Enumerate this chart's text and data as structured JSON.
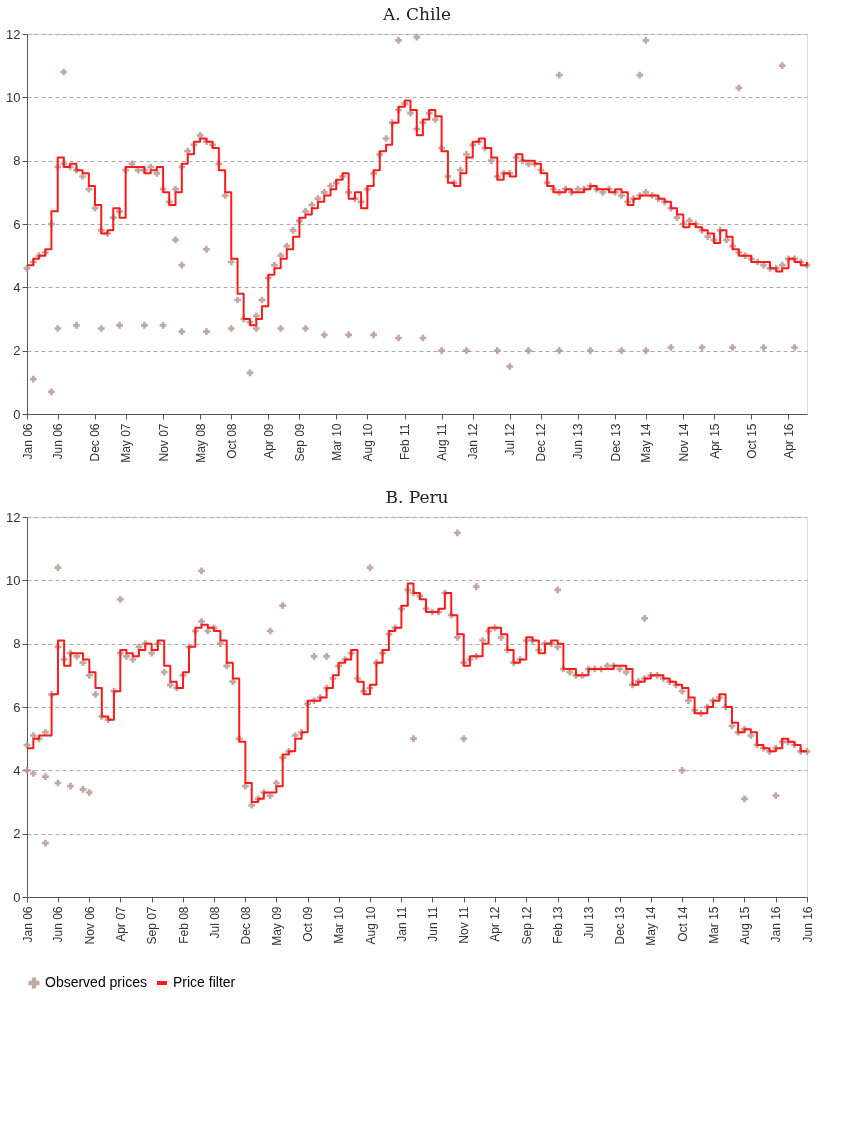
{
  "chart_data": [
    {
      "type": "line",
      "title": "A. Chile",
      "ylim": [
        0,
        12
      ],
      "yticks": [
        0,
        2,
        4,
        6,
        8,
        10,
        12
      ],
      "xlim": [
        "2006-01",
        "2016-07"
      ],
      "grid": "y",
      "xticks": [
        {
          "value": "2006-01",
          "label": "Jan 06"
        },
        {
          "value": "2006-06",
          "label": "Jun 06"
        },
        {
          "value": "2006-12",
          "label": "Dec 06"
        },
        {
          "value": "2007-05",
          "label": "May 07"
        },
        {
          "value": "2007-11",
          "label": "Nov 07"
        },
        {
          "value": "2008-05",
          "label": "May 08"
        },
        {
          "value": "2008-10",
          "label": "Oct 08"
        },
        {
          "value": "2009-04",
          "label": "Apr 09"
        },
        {
          "value": "2009-09",
          "label": "Sep 09"
        },
        {
          "value": "2010-03",
          "label": "Mar 10"
        },
        {
          "value": "2010-08",
          "label": "Aug 10"
        },
        {
          "value": "2011-02",
          "label": "Feb 11"
        },
        {
          "value": "2011-08",
          "label": "Aug 11"
        },
        {
          "value": "2012-01",
          "label": "Jan 12"
        },
        {
          "value": "2012-07",
          "label": "Jul 12"
        },
        {
          "value": "2012-12",
          "label": "Dec 12"
        },
        {
          "value": "2013-06",
          "label": "Jun 13"
        },
        {
          "value": "2013-12",
          "label": "Dec 13"
        },
        {
          "value": "2014-05",
          "label": "May 14"
        },
        {
          "value": "2014-11",
          "label": "Nov 14"
        },
        {
          "value": "2015-04",
          "label": "Apr 15"
        },
        {
          "value": "2015-10",
          "label": "Oct 15"
        },
        {
          "value": "2016-04",
          "label": "Apr 16"
        }
      ],
      "x": [
        "2006-01",
        "2006-02",
        "2006-03",
        "2006-04",
        "2006-05",
        "2006-06",
        "2006-07",
        "2006-08",
        "2006-09",
        "2006-10",
        "2006-11",
        "2006-12",
        "2007-01",
        "2007-02",
        "2007-03",
        "2007-04",
        "2007-05",
        "2007-06",
        "2007-07",
        "2007-08",
        "2007-09",
        "2007-10",
        "2007-11",
        "2007-12",
        "2008-01",
        "2008-02",
        "2008-03",
        "2008-04",
        "2008-05",
        "2008-06",
        "2008-07",
        "2008-08",
        "2008-09",
        "2008-10",
        "2008-11",
        "2008-12",
        "2009-01",
        "2009-02",
        "2009-03",
        "2009-04",
        "2009-05",
        "2009-06",
        "2009-07",
        "2009-08",
        "2009-09",
        "2009-10",
        "2009-11",
        "2009-12",
        "2010-01",
        "2010-02",
        "2010-03",
        "2010-04",
        "2010-05",
        "2010-06",
        "2010-07",
        "2010-08",
        "2010-09",
        "2010-10",
        "2010-11",
        "2010-12",
        "2011-01",
        "2011-02",
        "2011-03",
        "2011-04",
        "2011-05",
        "2011-06",
        "2011-07",
        "2011-08",
        "2011-09",
        "2011-10",
        "2011-11",
        "2011-12",
        "2012-01",
        "2012-02",
        "2012-03",
        "2012-04",
        "2012-05",
        "2012-06",
        "2012-07",
        "2012-08",
        "2012-09",
        "2012-10",
        "2012-11",
        "2012-12",
        "2013-01",
        "2013-02",
        "2013-03",
        "2013-04",
        "2013-05",
        "2013-06",
        "2013-07",
        "2013-08",
        "2013-09",
        "2013-10",
        "2013-11",
        "2013-12",
        "2014-01",
        "2014-02",
        "2014-03",
        "2014-04",
        "2014-05",
        "2014-06",
        "2014-07",
        "2014-08",
        "2014-09",
        "2014-10",
        "2014-11",
        "2014-12",
        "2015-01",
        "2015-02",
        "2015-03",
        "2015-04",
        "2015-05",
        "2015-06",
        "2015-07",
        "2015-08",
        "2015-09",
        "2015-10",
        "2015-11",
        "2015-12",
        "2016-01",
        "2016-02",
        "2016-03",
        "2016-04",
        "2016-05",
        "2016-06",
        "2016-07"
      ],
      "series": [
        {
          "type": "scatter",
          "marker": "cross",
          "color": "#b89890",
          "values": [
            4.6,
            4.8,
            5.0,
            5.1,
            6.0,
            7.8,
            7.9,
            7.8,
            7.7,
            7.5,
            7.1,
            6.5,
            5.8,
            5.7,
            6.2,
            6.4,
            7.7,
            7.9,
            7.7,
            7.7,
            7.8,
            7.6,
            7.1,
            6.7,
            7.1,
            7.8,
            8.3,
            8.5,
            8.8,
            8.6,
            8.5,
            7.9,
            6.9,
            4.8,
            3.6,
            3.0,
            2.9,
            3.1,
            3.6,
            4.3,
            4.7,
            5.0,
            5.3,
            5.8,
            6.1,
            6.4,
            6.6,
            6.8,
            7.0,
            7.2,
            7.3,
            7.5,
            7.0,
            6.8,
            6.7,
            7.1,
            7.6,
            8.2,
            8.7,
            9.2,
            9.6,
            9.8,
            9.5,
            9.0,
            9.2,
            9.5,
            9.3,
            8.4,
            7.5,
            7.3,
            7.7,
            8.2,
            8.5,
            8.6,
            8.4,
            8.0,
            7.5,
            7.6,
            7.6,
            8.1,
            8.0,
            7.9,
            7.9,
            7.7,
            7.3,
            7.1,
            7.0,
            7.1,
            7.0,
            7.1,
            7.1,
            7.2,
            7.1,
            7.0,
            7.1,
            7.0,
            6.9,
            6.7,
            6.8,
            6.9,
            7.0,
            6.9,
            6.8,
            6.7,
            6.5,
            6.2,
            6.0,
            6.1,
            6.0,
            5.8,
            5.6,
            5.5,
            5.8,
            5.5,
            5.3,
            5.1,
            5.0,
            4.9,
            4.8,
            4.7,
            4.6,
            4.6,
            4.7,
            4.9,
            4.9,
            4.8,
            4.7
          ]
        },
        {
          "type": "scatter",
          "marker": "cross",
          "color": "#b89890",
          "x": [
            "2006-06",
            "2006-09",
            "2007-01",
            "2007-04",
            "2007-08",
            "2007-11",
            "2008-02",
            "2008-06",
            "2008-10",
            "2009-02",
            "2009-06",
            "2009-10",
            "2010-01",
            "2010-05",
            "2010-09",
            "2011-01",
            "2011-05",
            "2011-08",
            "2011-12",
            "2012-05",
            "2012-10",
            "2013-03",
            "2013-08",
            "2014-01",
            "2014-05",
            "2014-09",
            "2015-02",
            "2015-07",
            "2015-12",
            "2016-05",
            "2006-02",
            "2006-07",
            "2006-05",
            "2008-01",
            "2008-02",
            "2008-06",
            "2011-01",
            "2011-04",
            "2013-03",
            "2014-05",
            "2014-04",
            "2015-08",
            "2016-03",
            "2012-07",
            "2009-01"
          ],
          "values": [
            2.7,
            2.8,
            2.7,
            2.8,
            2.8,
            2.8,
            2.6,
            2.6,
            2.7,
            2.7,
            2.7,
            2.7,
            2.5,
            2.5,
            2.5,
            2.4,
            2.4,
            2.0,
            2.0,
            2.0,
            2.0,
            2.0,
            2.0,
            2.0,
            2.0,
            2.1,
            2.1,
            2.1,
            2.1,
            2.1,
            1.1,
            10.8,
            0.7,
            5.5,
            4.7,
            5.2,
            11.8,
            11.9,
            10.7,
            11.8,
            10.7,
            10.3,
            11.0,
            1.5,
            1.3
          ]
        },
        {
          "type": "step",
          "line_style": "solid",
          "color": "#ff1a1a",
          "values": [
            4.7,
            4.9,
            5.0,
            5.2,
            6.4,
            8.1,
            7.8,
            7.9,
            7.7,
            7.6,
            7.2,
            6.6,
            5.7,
            5.8,
            6.5,
            6.2,
            7.8,
            7.8,
            7.8,
            7.6,
            7.7,
            7.8,
            7.0,
            6.6,
            7.0,
            7.9,
            8.2,
            8.6,
            8.7,
            8.6,
            8.4,
            7.7,
            7.0,
            4.9,
            3.8,
            3.0,
            2.8,
            3.0,
            3.4,
            4.4,
            4.6,
            4.9,
            5.2,
            5.6,
            6.2,
            6.3,
            6.5,
            6.7,
            6.9,
            7.1,
            7.4,
            7.6,
            6.8,
            7.0,
            6.5,
            7.2,
            7.7,
            8.3,
            8.5,
            9.2,
            9.7,
            9.9,
            9.6,
            8.8,
            9.3,
            9.6,
            9.4,
            8.3,
            7.3,
            7.2,
            7.6,
            8.1,
            8.6,
            8.7,
            8.4,
            8.1,
            7.4,
            7.6,
            7.5,
            8.2,
            8.0,
            8.0,
            7.9,
            7.6,
            7.2,
            7.0,
            7.0,
            7.1,
            7.0,
            7.0,
            7.1,
            7.2,
            7.1,
            7.1,
            7.0,
            7.1,
            7.0,
            6.6,
            6.8,
            6.9,
            6.9,
            6.9,
            6.8,
            6.7,
            6.5,
            6.3,
            5.9,
            6.0,
            5.9,
            5.8,
            5.7,
            5.4,
            5.8,
            5.6,
            5.2,
            5.0,
            5.0,
            4.8,
            4.8,
            4.8,
            4.6,
            4.5,
            4.6,
            4.9,
            4.8,
            4.7,
            4.8
          ]
        }
      ]
    },
    {
      "type": "line",
      "title": "B. Peru",
      "ylim": [
        0,
        12
      ],
      "yticks": [
        0,
        2,
        4,
        6,
        8,
        10,
        12
      ],
      "xlim": [
        "2006-01",
        "2016-06"
      ],
      "grid": "y",
      "legend": "bottom",
      "xticks": [
        {
          "value": "2006-01",
          "label": "Jan 06"
        },
        {
          "value": "2006-06",
          "label": "Jun 06"
        },
        {
          "value": "2006-11",
          "label": "Nov 06"
        },
        {
          "value": "2007-04",
          "label": "Apr 07"
        },
        {
          "value": "2007-09",
          "label": "Sep 07"
        },
        {
          "value": "2008-02",
          "label": "Feb 08"
        },
        {
          "value": "2008-07",
          "label": "Jul 08"
        },
        {
          "value": "2008-12",
          "label": "Dec 08"
        },
        {
          "value": "2009-05",
          "label": "May 09"
        },
        {
          "value": "2009-10",
          "label": "Oct 09"
        },
        {
          "value": "2010-03",
          "label": "Mar 10"
        },
        {
          "value": "2010-08",
          "label": "Aug 10"
        },
        {
          "value": "2011-01",
          "label": "Jan 11"
        },
        {
          "value": "2011-06",
          "label": "Jun 11"
        },
        {
          "value": "2011-11",
          "label": "Nov 11"
        },
        {
          "value": "2012-04",
          "label": "Apr 12"
        },
        {
          "value": "2012-09",
          "label": "Sep 12"
        },
        {
          "value": "2013-02",
          "label": "Feb 13"
        },
        {
          "value": "2013-07",
          "label": "Jul 13"
        },
        {
          "value": "2013-12",
          "label": "Dec 13"
        },
        {
          "value": "2014-05",
          "label": "May 14"
        },
        {
          "value": "2014-10",
          "label": "Oct 14"
        },
        {
          "value": "2015-03",
          "label": "Mar 15"
        },
        {
          "value": "2015-08",
          "label": "Aug 15"
        },
        {
          "value": "2016-01",
          "label": "Jan 16"
        },
        {
          "value": "2016-06",
          "label": "Jun 16"
        }
      ],
      "x": [
        "2006-01",
        "2006-02",
        "2006-03",
        "2006-04",
        "2006-05",
        "2006-06",
        "2006-07",
        "2006-08",
        "2006-09",
        "2006-10",
        "2006-11",
        "2006-12",
        "2007-01",
        "2007-02",
        "2007-03",
        "2007-04",
        "2007-05",
        "2007-06",
        "2007-07",
        "2007-08",
        "2007-09",
        "2007-10",
        "2007-11",
        "2007-12",
        "2008-01",
        "2008-02",
        "2008-03",
        "2008-04",
        "2008-05",
        "2008-06",
        "2008-07",
        "2008-08",
        "2008-09",
        "2008-10",
        "2008-11",
        "2008-12",
        "2009-01",
        "2009-02",
        "2009-03",
        "2009-04",
        "2009-05",
        "2009-06",
        "2009-07",
        "2009-08",
        "2009-09",
        "2009-10",
        "2009-11",
        "2009-12",
        "2010-01",
        "2010-02",
        "2010-03",
        "2010-04",
        "2010-05",
        "2010-06",
        "2010-07",
        "2010-08",
        "2010-09",
        "2010-10",
        "2010-11",
        "2010-12",
        "2011-01",
        "2011-02",
        "2011-03",
        "2011-04",
        "2011-05",
        "2011-06",
        "2011-07",
        "2011-08",
        "2011-09",
        "2011-10",
        "2011-11",
        "2011-12",
        "2012-01",
        "2012-02",
        "2012-03",
        "2012-04",
        "2012-05",
        "2012-06",
        "2012-07",
        "2012-08",
        "2012-09",
        "2012-10",
        "2012-11",
        "2012-12",
        "2013-01",
        "2013-02",
        "2013-03",
        "2013-04",
        "2013-05",
        "2013-06",
        "2013-07",
        "2013-08",
        "2013-09",
        "2013-10",
        "2013-11",
        "2013-12",
        "2014-01",
        "2014-02",
        "2014-03",
        "2014-04",
        "2014-05",
        "2014-06",
        "2014-07",
        "2014-08",
        "2014-09",
        "2014-10",
        "2014-11",
        "2014-12",
        "2015-01",
        "2015-02",
        "2015-03",
        "2015-04",
        "2015-05",
        "2015-06",
        "2015-07",
        "2015-08",
        "2015-09",
        "2015-10",
        "2015-11",
        "2015-12",
        "2016-01",
        "2016-02",
        "2016-03",
        "2016-04",
        "2016-05",
        "2016-06"
      ],
      "series": [
        {
          "name": "Observed prices",
          "type": "scatter",
          "marker": "cross",
          "color": "#b89890",
          "values": [
            4.8,
            5.1,
            5.0,
            5.2,
            6.4,
            7.9,
            7.5,
            7.7,
            7.6,
            7.4,
            7.0,
            6.4,
            5.7,
            5.6,
            6.5,
            7.7,
            7.6,
            7.5,
            7.9,
            8.0,
            7.7,
            8.0,
            7.1,
            6.7,
            6.6,
            7.0,
            7.9,
            8.4,
            8.7,
            8.4,
            8.5,
            8.0,
            7.3,
            6.8,
            5.0,
            3.5,
            2.9,
            3.1,
            3.3,
            3.2,
            3.6,
            4.4,
            4.6,
            5.1,
            5.2,
            6.1,
            6.2,
            6.3,
            6.6,
            6.9,
            7.3,
            7.5,
            7.7,
            6.9,
            6.5,
            6.6,
            7.4,
            7.7,
            8.3,
            8.5,
            9.1,
            9.7,
            9.6,
            9.5,
            9.1,
            9.0,
            9.0,
            9.6,
            8.9,
            8.2,
            7.4,
            7.5,
            7.6,
            8.1,
            8.4,
            8.5,
            8.2,
            7.8,
            7.4,
            7.5,
            8.1,
            8.1,
            7.8,
            8.0,
            8.0,
            7.9,
            7.2,
            7.1,
            7.0,
            7.0,
            7.2,
            7.2,
            7.2,
            7.3,
            7.3,
            7.2,
            7.1,
            6.7,
            6.8,
            6.9,
            7.0,
            7.0,
            6.9,
            6.8,
            6.7,
            6.5,
            6.2,
            5.9,
            5.8,
            6.0,
            6.2,
            6.3,
            6.0,
            5.4,
            5.2,
            5.3,
            5.1,
            4.8,
            4.7,
            4.6,
            4.7,
            4.9,
            4.9,
            4.8,
            4.6,
            4.6
          ]
        },
        {
          "type": "scatter",
          "marker": "cross",
          "color": "#b89890",
          "x": [
            "2006-01",
            "2006-02",
            "2006-04",
            "2006-06",
            "2006-08",
            "2006-10",
            "2006-11",
            "2006-04",
            "2006-06",
            "2007-04",
            "2008-05",
            "2009-06",
            "2009-04",
            "2010-08",
            "2011-10",
            "2012-01",
            "2013-02",
            "2014-04",
            "2015-08",
            "2016-01",
            "2011-03",
            "2011-11",
            "2014-10",
            "2009-11",
            "2010-01"
          ],
          "values": [
            4.0,
            3.9,
            3.8,
            3.6,
            3.5,
            3.4,
            3.3,
            1.7,
            10.4,
            9.4,
            10.3,
            9.2,
            8.4,
            10.4,
            11.5,
            9.8,
            9.7,
            8.8,
            3.1,
            3.2,
            5.0,
            5.0,
            4.0,
            7.6,
            7.6
          ]
        },
        {
          "name": "Price filter",
          "type": "step",
          "line_style": "solid",
          "color": "#ff1a1a",
          "values": [
            4.7,
            5.0,
            5.1,
            5.1,
            6.4,
            8.1,
            7.3,
            7.7,
            7.7,
            7.5,
            7.1,
            6.6,
            5.7,
            5.6,
            6.5,
            7.8,
            7.7,
            7.6,
            7.8,
            8.0,
            7.8,
            8.1,
            7.3,
            6.8,
            6.6,
            7.1,
            7.9,
            8.5,
            8.6,
            8.5,
            8.4,
            8.1,
            7.4,
            6.9,
            4.9,
            3.6,
            3.0,
            3.1,
            3.3,
            3.3,
            3.5,
            4.5,
            4.6,
            5.0,
            5.2,
            6.2,
            6.2,
            6.3,
            6.6,
            7.0,
            7.4,
            7.5,
            7.8,
            6.8,
            6.4,
            6.7,
            7.4,
            7.8,
            8.4,
            8.5,
            9.2,
            9.9,
            9.6,
            9.4,
            9.0,
            9.0,
            9.1,
            9.6,
            8.9,
            8.3,
            7.3,
            7.6,
            7.6,
            8.0,
            8.5,
            8.5,
            8.3,
            7.8,
            7.4,
            7.5,
            8.2,
            8.1,
            7.7,
            8.0,
            8.1,
            8.0,
            7.2,
            7.2,
            7.0,
            7.0,
            7.2,
            7.2,
            7.2,
            7.2,
            7.3,
            7.3,
            7.2,
            6.7,
            6.8,
            6.9,
            7.0,
            7.0,
            6.9,
            6.8,
            6.7,
            6.6,
            6.3,
            5.8,
            5.8,
            6.0,
            6.2,
            6.4,
            6.0,
            5.5,
            5.2,
            5.3,
            5.2,
            4.8,
            4.7,
            4.6,
            4.7,
            5.0,
            4.9,
            4.8,
            4.6,
            4.6
          ]
        }
      ]
    }
  ]
}
